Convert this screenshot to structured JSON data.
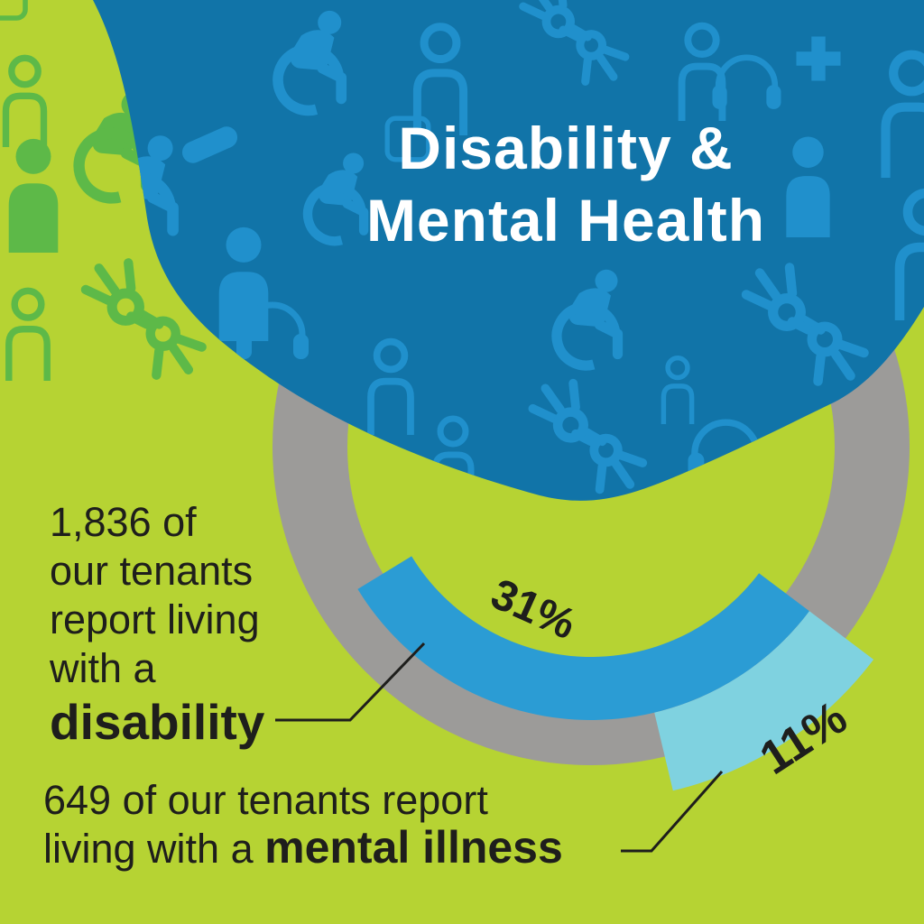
{
  "title": {
    "line1": "Disability &",
    "line2": "Mental Health"
  },
  "chart_data": {
    "type": "donut",
    "title": "Share of tenants reporting disability and mental illness",
    "legend_position": "annotations",
    "segments": [
      {
        "name": "disability",
        "label": "31%",
        "value": 31,
        "color": "#2b9cd4"
      },
      {
        "name": "mental-illness",
        "label": "11%",
        "value": 11,
        "color": "#7fd2e0"
      }
    ],
    "ring_color": "#9c9b99",
    "annotations": [
      {
        "text": "1,836 of our tenants report living with a disability",
        "points_to": "disability"
      },
      {
        "text": "649 of our tenants report living with a mental illness",
        "points_to": "mental-illness"
      }
    ]
  },
  "stats": [
    {
      "lines": [
        "1,836 of",
        "our tenants",
        "report living",
        "with a"
      ],
      "emphasis": "disability"
    },
    {
      "line1": "649 of our tenants report",
      "line2_prefix": "living with a ",
      "emphasis": "mental illness"
    }
  ],
  "colors": {
    "background": "#b6d333",
    "blob": "#1174a8",
    "pattern_green": "#5db948",
    "pattern_blue": "#2090cc",
    "ring": "#9c9b99",
    "ink": "#1e1e1c",
    "title_text": "#ffffff"
  },
  "icons": {
    "pattern": [
      "wheelchair-user",
      "person-outline",
      "person-filled",
      "headphones",
      "sign-language-hands",
      "medical-cross",
      "band-aid",
      "rounded-frame"
    ]
  }
}
